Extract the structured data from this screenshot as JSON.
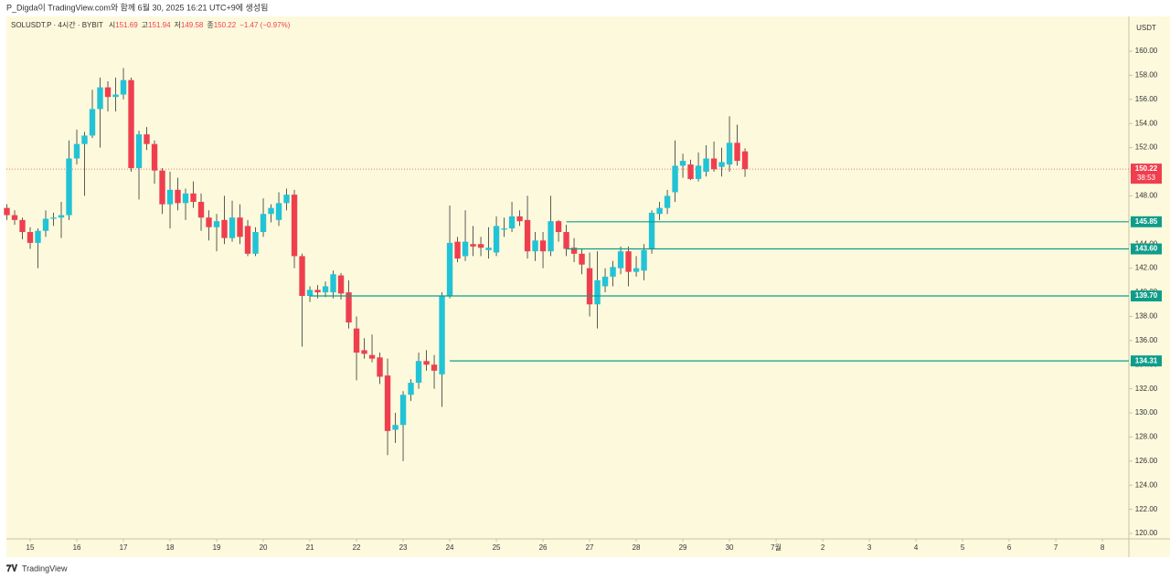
{
  "header": "P_Digda이 TradingView.com와 함께 6월 30, 2025 16:21 UTC+9에 생성됨",
  "footer": "TradingView",
  "chart_data": {
    "type": "candlestick",
    "legend": {
      "symbol": "SOLUSDT.P · 4시간 · BYBIT",
      "items": [
        {
          "label": "시",
          "value": "151.69"
        },
        {
          "label": "고",
          "value": "151.94"
        },
        {
          "label": "저",
          "value": "149.58"
        },
        {
          "label": "종",
          "value": "150.22"
        }
      ],
      "change": "−1.47 (−0.97%)"
    },
    "y_axis_label": "USDT",
    "up_color": "#22c3d6",
    "down_color": "#ef3f4f",
    "level_color": "#0f9d8a",
    "open": [
      147.0,
      146.4,
      146.0,
      145.0,
      144.1,
      145.1,
      146.1,
      146.2,
      146.4,
      151.1,
      152.3,
      153.0,
      155.2,
      157.0,
      156.2,
      156.4,
      157.6,
      150.3,
      153.1,
      152.3,
      150.1,
      147.3,
      148.5,
      147.4,
      148.2,
      147.5,
      146.2,
      145.4,
      146.0,
      144.5,
      146.2,
      145.5,
      143.2,
      145.0,
      146.5,
      146.0,
      147.4,
      148.1,
      143.0,
      139.7,
      140.2,
      140.0,
      140.0,
      141.4,
      140.0,
      137.0,
      135.2,
      134.8,
      134.6,
      133.1,
      128.6,
      129.0,
      131.5,
      132.5,
      134.3,
      134.0,
      133.2,
      139.7,
      144.2,
      143.0,
      144.0,
      144.0,
      143.5,
      143.3,
      145.2,
      145.3,
      146.3,
      146.0,
      143.4,
      144.3,
      143.4,
      145.9,
      145.0,
      143.7,
      143.2,
      142.0,
      139.0,
      140.5,
      141.3,
      142.0,
      143.4,
      141.7,
      141.8,
      143.6,
      146.5,
      147.0,
      148.3,
      150.5,
      150.6,
      149.4,
      150.0,
      151.1,
      150.4,
      150.6,
      152.4,
      151.69
    ],
    "high": [
      147.3,
      146.8,
      146.2,
      145.4,
      145.3,
      146.8,
      146.6,
      147.5,
      152.6,
      153.5,
      153.3,
      156.8,
      157.8,
      157.5,
      157.8,
      158.6,
      157.8,
      153.4,
      153.7,
      152.6,
      150.3,
      150.0,
      149.5,
      148.6,
      149.2,
      148.2,
      146.8,
      146.5,
      148.0,
      147.6,
      147.3,
      146.0,
      145.4,
      147.8,
      147.3,
      148.3,
      148.6,
      148.5,
      143.2,
      140.5,
      140.6,
      140.9,
      141.8,
      141.6,
      141.0,
      138.0,
      136.2,
      136.5,
      135.0,
      134.5,
      130.0,
      131.8,
      132.8,
      135.0,
      135.2,
      134.8,
      140.0,
      147.2,
      144.6,
      146.8,
      145.5,
      144.6,
      145.4,
      146.3,
      146.2,
      147.5,
      146.8,
      148.0,
      145.0,
      145.0,
      148.0,
      146.0,
      145.6,
      144.5,
      143.6,
      143.3,
      143.4,
      142.0,
      142.6,
      143.8,
      143.8,
      143.0,
      144.0,
      146.8,
      147.5,
      148.5,
      152.6,
      151.5,
      151.0,
      151.6,
      152.2,
      152.5,
      152.0,
      154.6,
      153.9,
      151.94
    ],
    "low": [
      146.0,
      145.6,
      144.4,
      143.6,
      142.0,
      144.6,
      145.5,
      144.5,
      146.0,
      150.6,
      148.0,
      152.8,
      152.0,
      155.0,
      155.0,
      156.0,
      150.0,
      147.7,
      151.8,
      149.0,
      146.5,
      145.3,
      146.8,
      146.0,
      147.0,
      145.1,
      144.3,
      143.4,
      144.0,
      144.2,
      144.0,
      143.0,
      143.0,
      144.6,
      145.8,
      145.5,
      146.8,
      142.0,
      135.5,
      139.2,
      139.5,
      139.6,
      139.5,
      139.4,
      137.0,
      132.7,
      134.5,
      134.2,
      132.4,
      126.5,
      127.5,
      126.0,
      131.0,
      132.0,
      133.5,
      132.0,
      130.5,
      139.5,
      142.5,
      142.6,
      143.0,
      143.0,
      142.8,
      143.0,
      144.6,
      145.0,
      145.5,
      142.8,
      142.6,
      142.0,
      143.0,
      144.2,
      143.0,
      142.5,
      141.5,
      138.0,
      137.0,
      140.0,
      140.5,
      141.5,
      140.5,
      141.3,
      141.0,
      143.2,
      146.0,
      146.5,
      147.5,
      149.5,
      149.3,
      149.2,
      149.6,
      150.0,
      149.6,
      150.0,
      150.5,
      149.58
    ],
    "close": [
      146.4,
      146.0,
      145.0,
      144.1,
      145.1,
      146.1,
      146.2,
      146.4,
      151.1,
      152.3,
      153.0,
      155.2,
      157.0,
      156.2,
      156.4,
      157.6,
      150.3,
      153.1,
      152.3,
      150.1,
      147.3,
      148.5,
      147.4,
      148.2,
      147.5,
      146.2,
      145.4,
      145.9,
      144.5,
      146.2,
      144.6,
      143.2,
      145.0,
      146.5,
      147.0,
      147.4,
      148.1,
      143.0,
      139.7,
      140.2,
      140.0,
      140.5,
      141.5,
      139.9,
      137.5,
      135.0,
      134.9,
      134.5,
      133.0,
      128.5,
      129.0,
      131.5,
      132.5,
      134.3,
      134.0,
      133.5,
      139.7,
      144.1,
      142.8,
      144.2,
      143.8,
      143.7,
      143.7,
      145.5,
      145.3,
      146.3,
      145.9,
      143.4,
      144.3,
      143.4,
      145.9,
      145.0,
      143.6,
      143.2,
      142.3,
      139.0,
      141.0,
      141.3,
      142.1,
      143.4,
      141.7,
      142.0,
      143.5,
      146.6,
      147.0,
      148.0,
      150.5,
      150.9,
      149.4,
      150.5,
      151.1,
      150.2,
      150.8,
      152.4,
      150.9,
      150.22
    ],
    "xlim": [
      -0.06,
      144.4
    ],
    "xticks": [
      {
        "value": 3,
        "label": "15"
      },
      {
        "value": 9,
        "label": "16"
      },
      {
        "value": 15,
        "label": "17"
      },
      {
        "value": 21,
        "label": "18"
      },
      {
        "value": 27,
        "label": "19"
      },
      {
        "value": 33,
        "label": "20"
      },
      {
        "value": 39,
        "label": "21"
      },
      {
        "value": 45,
        "label": "22"
      },
      {
        "value": 51,
        "label": "23"
      },
      {
        "value": 57,
        "label": "24"
      },
      {
        "value": 63,
        "label": "25"
      },
      {
        "value": 69,
        "label": "26"
      },
      {
        "value": 75,
        "label": "27"
      },
      {
        "value": 81,
        "label": "28"
      },
      {
        "value": 87,
        "label": "29"
      },
      {
        "value": 93,
        "label": "30"
      },
      {
        "value": 99,
        "label": "7월"
      },
      {
        "value": 105,
        "label": "2"
      },
      {
        "value": 111,
        "label": "3"
      },
      {
        "value": 117,
        "label": "4"
      },
      {
        "value": 123,
        "label": "5"
      },
      {
        "value": 129,
        "label": "6"
      },
      {
        "value": 135,
        "label": "7"
      },
      {
        "value": 141,
        "label": "8"
      }
    ],
    "ylim": [
      119.55,
      162.88
    ],
    "yticks": [
      {
        "value": 120,
        "label": "120.00"
      },
      {
        "value": 122,
        "label": "122.00"
      },
      {
        "value": 124,
        "label": "124.00"
      },
      {
        "value": 126,
        "label": "126.00"
      },
      {
        "value": 128,
        "label": "128.00"
      },
      {
        "value": 130,
        "label": "130.00"
      },
      {
        "value": 132,
        "label": "132.00"
      },
      {
        "value": 134,
        "label": "134.00"
      },
      {
        "value": 136,
        "label": "136.00"
      },
      {
        "value": 138,
        "label": "138.00"
      },
      {
        "value": 140,
        "label": "140.00"
      },
      {
        "value": 142,
        "label": "142.00"
      },
      {
        "value": 144,
        "label": "144.00"
      },
      {
        "value": 146,
        "label": "146.00"
      },
      {
        "value": 148,
        "label": "148.00"
      },
      {
        "value": 150,
        "label": "150.00"
      },
      {
        "value": 152,
        "label": "152.00"
      },
      {
        "value": 154,
        "label": "154.00"
      },
      {
        "value": 156,
        "label": "156.00"
      },
      {
        "value": 158,
        "label": "158.00"
      },
      {
        "value": 160,
        "label": "160.00"
      }
    ],
    "levels": [
      {
        "value": 145.85,
        "label": "145.85",
        "from": 72
      },
      {
        "value": 143.6,
        "label": "143.60",
        "from": 72
      },
      {
        "value": 139.7,
        "label": "139.70",
        "from": 39
      },
      {
        "value": 134.31,
        "label": "134.31",
        "from": 57
      }
    ],
    "last": {
      "value": 150.22,
      "label": "150.22",
      "countdown": "38:53"
    }
  }
}
